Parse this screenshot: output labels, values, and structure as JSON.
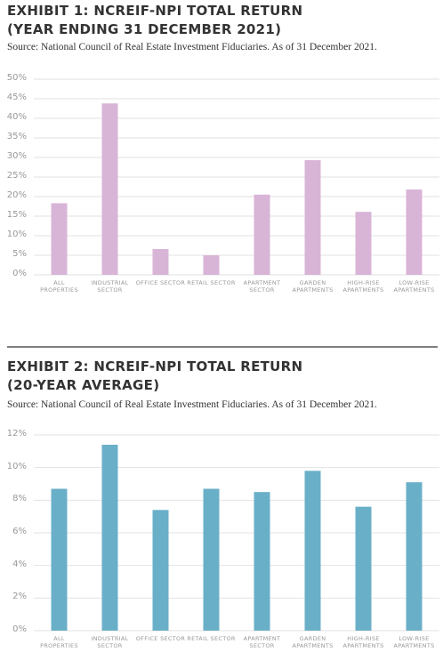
{
  "chart_data": [
    {
      "type": "bar",
      "title": "EXHIBIT 1: NCREIF-NPI TOTAL RETURN (YEAR ENDING 31 DECEMBER 2021)",
      "subtitle": "Source: National Council of Real Estate Investment Fiduciaries. As of 31 December 2021.",
      "categories": [
        "ALL PROPERTIES",
        "INDUSTRIAL SECTOR",
        "OFFICE SECTOR",
        "RETAIL SECTOR",
        "APARTMENT SECTOR",
        "GARDEN APARTMENTS",
        "HIGH-RISE APARTMENTS",
        "LOW-RISE APARTMENTS"
      ],
      "values": [
        18.3,
        43.8,
        6.6,
        5.0,
        20.5,
        29.3,
        16.1,
        21.8
      ],
      "color": "#d8b4d7",
      "ylim": [
        0,
        50
      ],
      "yticks": [
        {
          "value": 0,
          "label": "0%"
        },
        {
          "value": 5,
          "label": "5%"
        },
        {
          "value": 10,
          "label": "10%"
        },
        {
          "value": 15,
          "label": "15%"
        },
        {
          "value": 20,
          "label": "20%"
        },
        {
          "value": 25,
          "label": "25%"
        },
        {
          "value": 30,
          "label": "30%"
        },
        {
          "value": 35,
          "label": "35%"
        },
        {
          "value": 40,
          "label": "40%"
        },
        {
          "value": 45,
          "label": "45%"
        },
        {
          "value": 50,
          "label": "50%"
        }
      ],
      "grid": true
    },
    {
      "type": "bar",
      "title": "EXHIBIT 2: NCREIF-NPI TOTAL RETURN (20-YEAR AVERAGE)",
      "subtitle": "Source: National Council of Real Estate Investment Fiduciaries. As of 31 December 2021.",
      "categories": [
        "ALL PROPERTIES",
        "INDUSTRIAL SECTOR",
        "OFFICE SECTOR",
        "RETAIL SECTOR",
        "APARTMENT SECTOR",
        "GARDEN APARTMENTS",
        "HIGH-RISE APARTMENTS",
        "LOW-RISE APARTMENTS"
      ],
      "values": [
        8.7,
        11.4,
        7.4,
        8.7,
        8.5,
        9.8,
        7.6,
        9.1
      ],
      "color": "#6aafc8",
      "ylim": [
        0,
        12
      ],
      "yticks": [
        {
          "value": 0,
          "label": "0%"
        },
        {
          "value": 2,
          "label": "2%"
        },
        {
          "value": 4,
          "label": "4%"
        },
        {
          "value": 6,
          "label": "6%"
        },
        {
          "value": 8,
          "label": "8%"
        },
        {
          "value": 10,
          "label": "10%"
        },
        {
          "value": 12,
          "label": "12%"
        }
      ],
      "grid": true
    }
  ]
}
